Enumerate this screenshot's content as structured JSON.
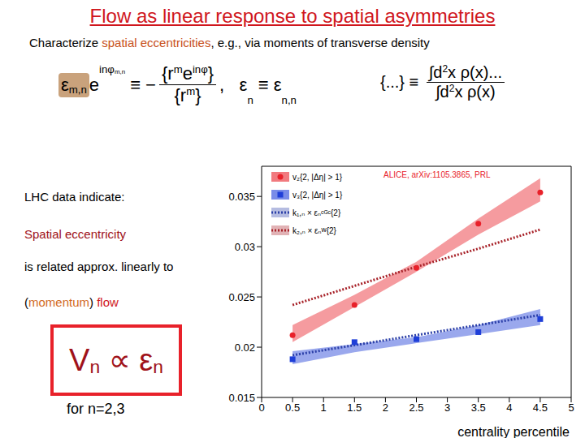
{
  "slide": {
    "title": "Flow as linear response to spatial asymmetries",
    "subtitle": [
      "Characterize ",
      "spatial eccentricities",
      ", e.g., via moments of transverse density"
    ],
    "formula_1": [
      {
        "t": "ε"
      },
      {
        "sub": "m,n"
      },
      {
        "t": "e"
      },
      {
        "sup": [
          {
            "t": "inφ"
          },
          {
            "sub": "m,n"
          }
        ]
      },
      {
        "t": " ≡ −"
      },
      {
        "frac": [
          [
            {
              "t": "{r"
            },
            {
              "sup": "m"
            },
            {
              "t": "e"
            },
            {
              "sup": "inφ"
            },
            {
              "t": "}"
            }
          ],
          [
            {
              "t": "{r"
            },
            {
              "sup": "m"
            },
            {
              "t": "}"
            }
          ]
        ]
      },
      {
        "t": ",   ε"
      },
      {
        "sub": "n"
      },
      {
        "t": " ≡ ε"
      },
      {
        "sub": "n,n"
      }
    ],
    "formula_2": [
      {
        "t": "{...} ≡ "
      },
      {
        "frac": [
          [
            {
              "t": "∫d"
            },
            {
              "sup": "2"
            },
            {
              "t": "x ρ(x)..."
            }
          ],
          [
            {
              "t": "∫d"
            },
            {
              "sup": "2"
            },
            {
              "t": "x ρ(x)"
            }
          ]
        ]
      }
    ],
    "lhc": "LHC data indicate:",
    "eccentricity": "Spatial eccentricity",
    "related": "is related approx. linearly to",
    "flow": [
      "(",
      "momentum",
      ") ",
      "flow"
    ],
    "relation": [
      {
        "t": "V"
      },
      {
        "sub": "n"
      },
      {
        "t": " ∝ ε"
      },
      {
        "sub": "n"
      }
    ],
    "for_n": "for n=2,3"
  },
  "chart_data": {
    "type": "scatter",
    "annotation": "ALICE, arXiv:1105.3865, PRL",
    "x_label": "centrality percentile",
    "x": [
      0.5,
      1.5,
      2.5,
      3.5,
      4.5
    ],
    "xlim": [
      0,
      5
    ],
    "xticks": [
      0,
      0.5,
      1,
      1.5,
      2,
      2.5,
      3,
      3.5,
      4,
      4.5,
      5
    ],
    "ylim": [
      0.015,
      0.038
    ],
    "yticks": [
      0.015,
      0.02,
      0.025,
      0.03,
      0.035
    ],
    "legend": "upper left",
    "series": [
      {
        "name": "v₂{2, |Δη| > 1}",
        "type": "scatter",
        "marker": "circle",
        "color": "#e8212a",
        "values": [
          0.0212,
          0.0242,
          0.0279,
          0.0323,
          0.0354
        ],
        "band_low": [
          0.0205,
          0.024,
          0.0275,
          0.0312,
          0.0345
        ],
        "band_high": [
          0.0222,
          0.0252,
          0.0285,
          0.0328,
          0.0368
        ]
      },
      {
        "name": "v₃{2, |Δη| > 1}",
        "type": "scatter",
        "marker": "square",
        "color": "#1f3fd8",
        "values": [
          0.0188,
          0.0205,
          0.0208,
          0.0215,
          0.0228
        ],
        "band_low": [
          0.0183,
          0.0195,
          0.0204,
          0.0213,
          0.0222
        ],
        "band_high": [
          0.0196,
          0.0203,
          0.021,
          0.0222,
          0.0238
        ]
      },
      {
        "name": "k₁,ₙ × εₙᶜᴳᶜ{2}",
        "type": "line",
        "line_style": "dotted",
        "color": "#2b3fa8",
        "values": [
          0.0192,
          0.0202,
          0.0212,
          0.0222,
          0.0232
        ]
      },
      {
        "name": "k₂,ₙ × εₙᵂ{2}",
        "type": "line",
        "line_style": "dotted",
        "color": "#a8232a",
        "values": [
          0.0242,
          0.0261,
          0.028,
          0.0298,
          0.0317
        ]
      }
    ]
  }
}
